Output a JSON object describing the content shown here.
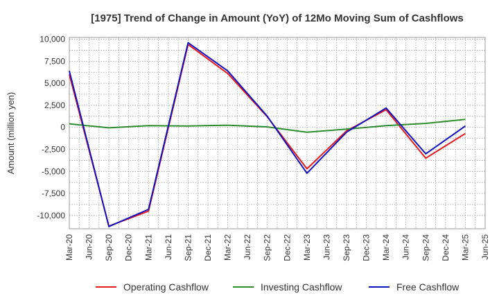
{
  "chart_data": {
    "type": "line",
    "title": "[1975]  Trend of Change in Amount (YoY) of 12Mo Moving Sum of Cashflows",
    "xlabel": "",
    "ylabel": "Amount (million yen)",
    "ylim": [
      -11500,
      10200
    ],
    "yticks": [
      10000,
      7500,
      5000,
      2500,
      0,
      -2500,
      -5000,
      -7500,
      -10000
    ],
    "ytick_labels": [
      "10,000",
      "7,500",
      "5,000",
      "2,500",
      "0",
      "-2,500",
      "-5,000",
      "-7,500",
      "-10,000"
    ],
    "categories": [
      "Mar-20",
      "Jun-20",
      "Sep-20",
      "Dec-20",
      "Mar-21",
      "Jun-21",
      "Sep-21",
      "Dec-21",
      "Mar-22",
      "Jun-22",
      "Sep-22",
      "Dec-22",
      "Mar-23",
      "Jun-23",
      "Sep-23",
      "Dec-23",
      "Mar-24",
      "Jun-24",
      "Sep-24",
      "Dec-24",
      "Mar-25",
      "Jun-25"
    ],
    "grid": true,
    "legend_position": "bottom",
    "series": [
      {
        "name": "Operating Cashflow",
        "color": "#e41a1c",
        "values": [
          6000,
          null,
          -11200,
          null,
          -9500,
          null,
          9400,
          null,
          6100,
          null,
          1200,
          null,
          -4700,
          null,
          -400,
          null,
          2000,
          null,
          -3500,
          null,
          -700,
          null
        ]
      },
      {
        "name": "Investing Cashflow",
        "color": "#2e8b2e",
        "values": [
          400,
          null,
          -50,
          null,
          200,
          null,
          150,
          null,
          250,
          null,
          50,
          null,
          -550,
          null,
          -200,
          null,
          200,
          null,
          450,
          null,
          900,
          null
        ]
      },
      {
        "name": "Free Cashflow",
        "color": "#1010c0",
        "values": [
          6400,
          null,
          -11250,
          null,
          -9300,
          null,
          9600,
          null,
          6400,
          null,
          1250,
          null,
          -5200,
          null,
          -550,
          null,
          2200,
          null,
          -3000,
          null,
          150,
          null
        ]
      }
    ]
  }
}
